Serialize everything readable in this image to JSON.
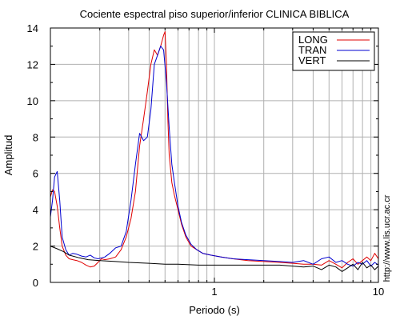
{
  "chart_data": {
    "type": "line",
    "title": "Cociente espectral piso superior/inferior  CLINICA BIBLICA",
    "xlabel": "Periodo (s)",
    "ylabel": "Amplitud",
    "xscale": "log",
    "xlim": [
      0.1,
      10
    ],
    "ylim": [
      0,
      14
    ],
    "x_ticks": [
      1,
      10
    ],
    "x_tick_labels": [
      "1",
      "10"
    ],
    "y_ticks": [
      0,
      2,
      4,
      6,
      8,
      10,
      12,
      14
    ],
    "y_tick_labels": [
      "0",
      "2",
      "4",
      "6",
      "8",
      "10",
      "12",
      "14"
    ],
    "grid": true,
    "legend_position": "top-right",
    "series": [
      {
        "name": "LONG",
        "color": "#e00000",
        "x": [
          0.1,
          0.103,
          0.106,
          0.11,
          0.114,
          0.118,
          0.124,
          0.13,
          0.137,
          0.145,
          0.155,
          0.165,
          0.175,
          0.185,
          0.195,
          0.205,
          0.215,
          0.23,
          0.25,
          0.27,
          0.29,
          0.31,
          0.33,
          0.35,
          0.37,
          0.39,
          0.41,
          0.43,
          0.45,
          0.47,
          0.49,
          0.5,
          0.51,
          0.52,
          0.53,
          0.55,
          0.57,
          0.6,
          0.63,
          0.67,
          0.72,
          0.78,
          0.85,
          0.95,
          1.1,
          1.3,
          1.6,
          2.0,
          2.5,
          3.0,
          3.5,
          4.0,
          4.5,
          5.0,
          5.5,
          6.0,
          6.5,
          7.0,
          7.5,
          8.0,
          8.5,
          9.0,
          9.5,
          10
        ],
        "y": [
          4.7,
          5.1,
          5.0,
          4.2,
          3.0,
          2.0,
          1.5,
          1.3,
          1.25,
          1.2,
          1.1,
          0.95,
          0.85,
          0.9,
          1.1,
          1.3,
          1.25,
          1.3,
          1.4,
          1.8,
          2.5,
          3.5,
          5.0,
          7.5,
          9.0,
          10.5,
          12.0,
          12.8,
          12.5,
          13.0,
          13.6,
          13.8,
          12.0,
          9.0,
          7.0,
          5.5,
          4.8,
          4.0,
          3.2,
          2.5,
          2.0,
          1.8,
          1.6,
          1.5,
          1.4,
          1.3,
          1.2,
          1.15,
          1.1,
          1.05,
          1.0,
          1.0,
          0.95,
          1.2,
          1.0,
          0.8,
          1.1,
          1.3,
          1.0,
          1.2,
          1.4,
          1.2,
          1.6,
          1.3
        ]
      },
      {
        "name": "TRAN",
        "color": "#0000d0",
        "x": [
          0.1,
          0.103,
          0.106,
          0.11,
          0.114,
          0.118,
          0.124,
          0.13,
          0.137,
          0.145,
          0.155,
          0.165,
          0.175,
          0.185,
          0.195,
          0.205,
          0.215,
          0.23,
          0.25,
          0.27,
          0.29,
          0.31,
          0.33,
          0.35,
          0.37,
          0.39,
          0.41,
          0.43,
          0.45,
          0.47,
          0.49,
          0.51,
          0.53,
          0.55,
          0.57,
          0.6,
          0.63,
          0.67,
          0.72,
          0.78,
          0.85,
          0.95,
          1.1,
          1.3,
          1.6,
          2.0,
          2.5,
          3.0,
          3.5,
          4.0,
          4.5,
          5.0,
          5.5,
          6.0,
          6.5,
          7.0,
          7.5,
          8.0,
          8.5,
          9.0,
          9.5,
          10
        ],
        "y": [
          3.6,
          4.5,
          5.8,
          6.1,
          4.5,
          2.5,
          1.8,
          1.5,
          1.6,
          1.55,
          1.45,
          1.4,
          1.5,
          1.35,
          1.3,
          1.35,
          1.4,
          1.6,
          1.9,
          2.0,
          2.8,
          4.5,
          6.5,
          8.2,
          7.8,
          8.0,
          9.5,
          12.0,
          12.5,
          13.0,
          12.8,
          11.0,
          8.5,
          6.5,
          5.5,
          4.2,
          3.3,
          2.6,
          2.1,
          1.8,
          1.6,
          1.5,
          1.4,
          1.3,
          1.25,
          1.2,
          1.15,
          1.1,
          1.2,
          1.0,
          1.3,
          1.4,
          1.1,
          1.2,
          1.0,
          0.9,
          1.1,
          1.0,
          1.2,
          0.9,
          1.1,
          0.95
        ]
      },
      {
        "name": "VERT",
        "color": "#000000",
        "x": [
          0.1,
          0.11,
          0.12,
          0.13,
          0.15,
          0.17,
          0.2,
          0.25,
          0.3,
          0.4,
          0.5,
          0.6,
          0.8,
          1.0,
          1.5,
          2.0,
          2.5,
          3.0,
          3.5,
          4.0,
          4.5,
          5.0,
          5.5,
          6.0,
          6.5,
          7.0,
          7.5,
          8.0,
          8.5,
          9.0,
          9.5,
          10
        ],
        "y": [
          2.0,
          1.85,
          1.7,
          1.5,
          1.35,
          1.25,
          1.2,
          1.15,
          1.1,
          1.05,
          1.0,
          1.0,
          0.95,
          0.95,
          0.95,
          0.95,
          0.95,
          0.9,
          0.85,
          0.9,
          0.7,
          0.95,
          0.85,
          0.6,
          0.8,
          1.0,
          0.7,
          1.1,
          0.8,
          0.95,
          0.7,
          0.9
        ]
      }
    ]
  },
  "credit": "http://www.lis.ucr.ac.cr"
}
